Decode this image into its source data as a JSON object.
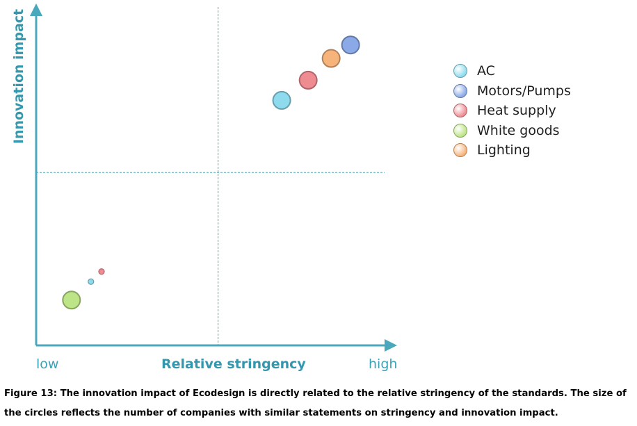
{
  "chart_data": {
    "type": "scatter",
    "xlabel": "Relative stringency",
    "ylabel": "Innovation impact",
    "x_tick_low": "low",
    "x_tick_high": "high",
    "xlim": [
      0,
      1
    ],
    "ylim": [
      0,
      1
    ],
    "quadrant_lines": {
      "x": 0.515,
      "y": 0.515
    },
    "series": [
      {
        "name": "AC",
        "color": "#8fdbee",
        "points": [
          {
            "x": 0.695,
            "y": 0.73,
            "size": 3
          },
          {
            "x": 0.155,
            "y": 0.19,
            "size": 1
          }
        ]
      },
      {
        "name": "Motors/Pumps",
        "color": "#8aa9e6",
        "points": [
          {
            "x": 0.89,
            "y": 0.895,
            "size": 3
          }
        ]
      },
      {
        "name": "Heat supply",
        "color": "#ef8c92",
        "points": [
          {
            "x": 0.77,
            "y": 0.79,
            "size": 3
          },
          {
            "x": 0.185,
            "y": 0.22,
            "size": 1
          }
        ]
      },
      {
        "name": "White goods",
        "color": "#bde486",
        "points": [
          {
            "x": 0.1,
            "y": 0.135,
            "size": 3
          }
        ]
      },
      {
        "name": "Lighting",
        "color": "#f6b47b",
        "points": [
          {
            "x": 0.835,
            "y": 0.855,
            "size": 3
          }
        ]
      }
    ],
    "legend_position": "right"
  },
  "caption": "Figure 13: The innovation impact of Ecodesign is directly related to the relative stringency of the standards. The size of the circles reflects the number of companies with similar statements on stringency and innovation impact.",
  "colors": {
    "axis": "#4aa8bd",
    "axis_label": "#3397ad"
  }
}
